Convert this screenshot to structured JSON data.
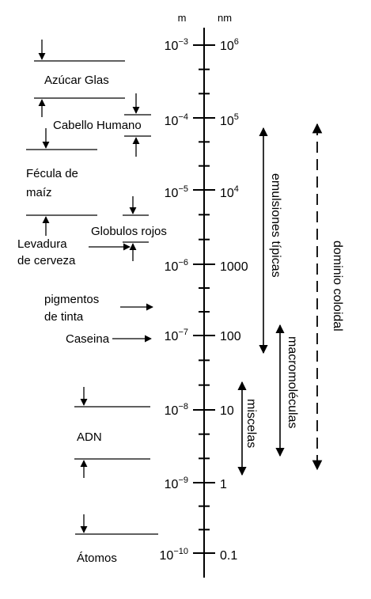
{
  "units": {
    "meters": "m",
    "nanometers": "nm"
  },
  "scale": {
    "meters": [
      {
        "base": "10",
        "exp": "−3"
      },
      {
        "base": "10",
        "exp": "−4"
      },
      {
        "base": "10",
        "exp": "−5"
      },
      {
        "base": "10",
        "exp": "−6"
      },
      {
        "base": "10",
        "exp": "−7"
      },
      {
        "base": "10",
        "exp": "−8"
      },
      {
        "base": "10",
        "exp": "−9"
      },
      {
        "base": "10",
        "exp": "−10"
      }
    ],
    "nanometers": [
      {
        "base": "10",
        "exp": "6"
      },
      {
        "base": "10",
        "exp": "5"
      },
      {
        "base": "10",
        "exp": "4"
      },
      {
        "base": "1000",
        "exp": ""
      },
      {
        "base": "100",
        "exp": ""
      },
      {
        "base": "10",
        "exp": ""
      },
      {
        "base": "1",
        "exp": ""
      },
      {
        "base": "0.1",
        "exp": ""
      }
    ]
  },
  "items": {
    "azucar": "Azúcar Glas",
    "cabello": "Cabello Humano",
    "fecula_1": "Fécula de",
    "fecula_2": "maíz",
    "globulos": "Globulos rojos",
    "levadura_1": "Levadura",
    "levadura_2": "de cerveza",
    "pigmentos_1": "pigmentos",
    "pigmentos_2": "de tinta",
    "caseina": "Caseina",
    "adn": "ADN",
    "atomos": "Átomos"
  },
  "ranges": {
    "emulsiones": "emulsiones típicas",
    "macromoleculas": "macromoléculas",
    "miscelas": "miscelas",
    "dominio": "dominio coloidal"
  }
}
